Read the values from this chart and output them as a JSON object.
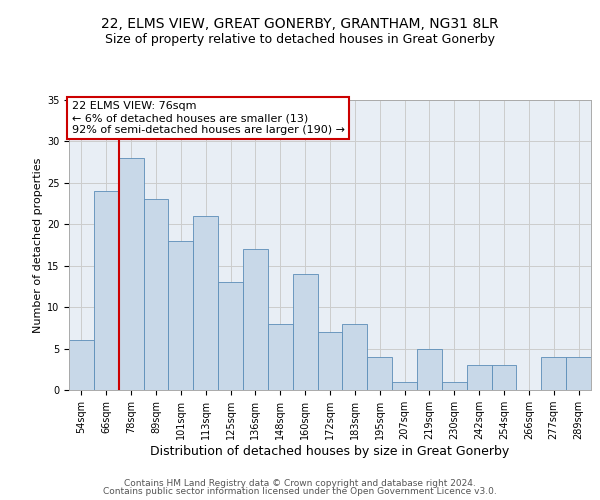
{
  "title1": "22, ELMS VIEW, GREAT GONERBY, GRANTHAM, NG31 8LR",
  "title2": "Size of property relative to detached houses in Great Gonerby",
  "xlabel": "Distribution of detached houses by size in Great Gonerby",
  "ylabel": "Number of detached properties",
  "categories": [
    "54sqm",
    "66sqm",
    "78sqm",
    "89sqm",
    "101sqm",
    "113sqm",
    "125sqm",
    "136sqm",
    "148sqm",
    "160sqm",
    "172sqm",
    "183sqm",
    "195sqm",
    "207sqm",
    "219sqm",
    "230sqm",
    "242sqm",
    "254sqm",
    "266sqm",
    "277sqm",
    "289sqm"
  ],
  "values": [
    6,
    24,
    28,
    23,
    18,
    21,
    13,
    17,
    8,
    14,
    7,
    8,
    4,
    1,
    5,
    1,
    3,
    3,
    0,
    4,
    4
  ],
  "bar_color": "#c8d8e8",
  "bar_edge_color": "#5b8db8",
  "annotation_text": "22 ELMS VIEW: 76sqm\n← 6% of detached houses are smaller (13)\n92% of semi-detached houses are larger (190) →",
  "annotation_box_color": "#ffffff",
  "annotation_border_color": "#cc0000",
  "vline_x_index": 2,
  "vline_color": "#cc0000",
  "ylim": [
    0,
    35
  ],
  "yticks": [
    0,
    5,
    10,
    15,
    20,
    25,
    30,
    35
  ],
  "grid_color": "#cccccc",
  "bg_color": "#e8eef5",
  "footer1": "Contains HM Land Registry data © Crown copyright and database right 2024.",
  "footer2": "Contains public sector information licensed under the Open Government Licence v3.0.",
  "title1_fontsize": 10,
  "title2_fontsize": 9,
  "xlabel_fontsize": 9,
  "ylabel_fontsize": 8,
  "tick_fontsize": 7,
  "footer_fontsize": 6.5,
  "ann_fontsize": 8
}
